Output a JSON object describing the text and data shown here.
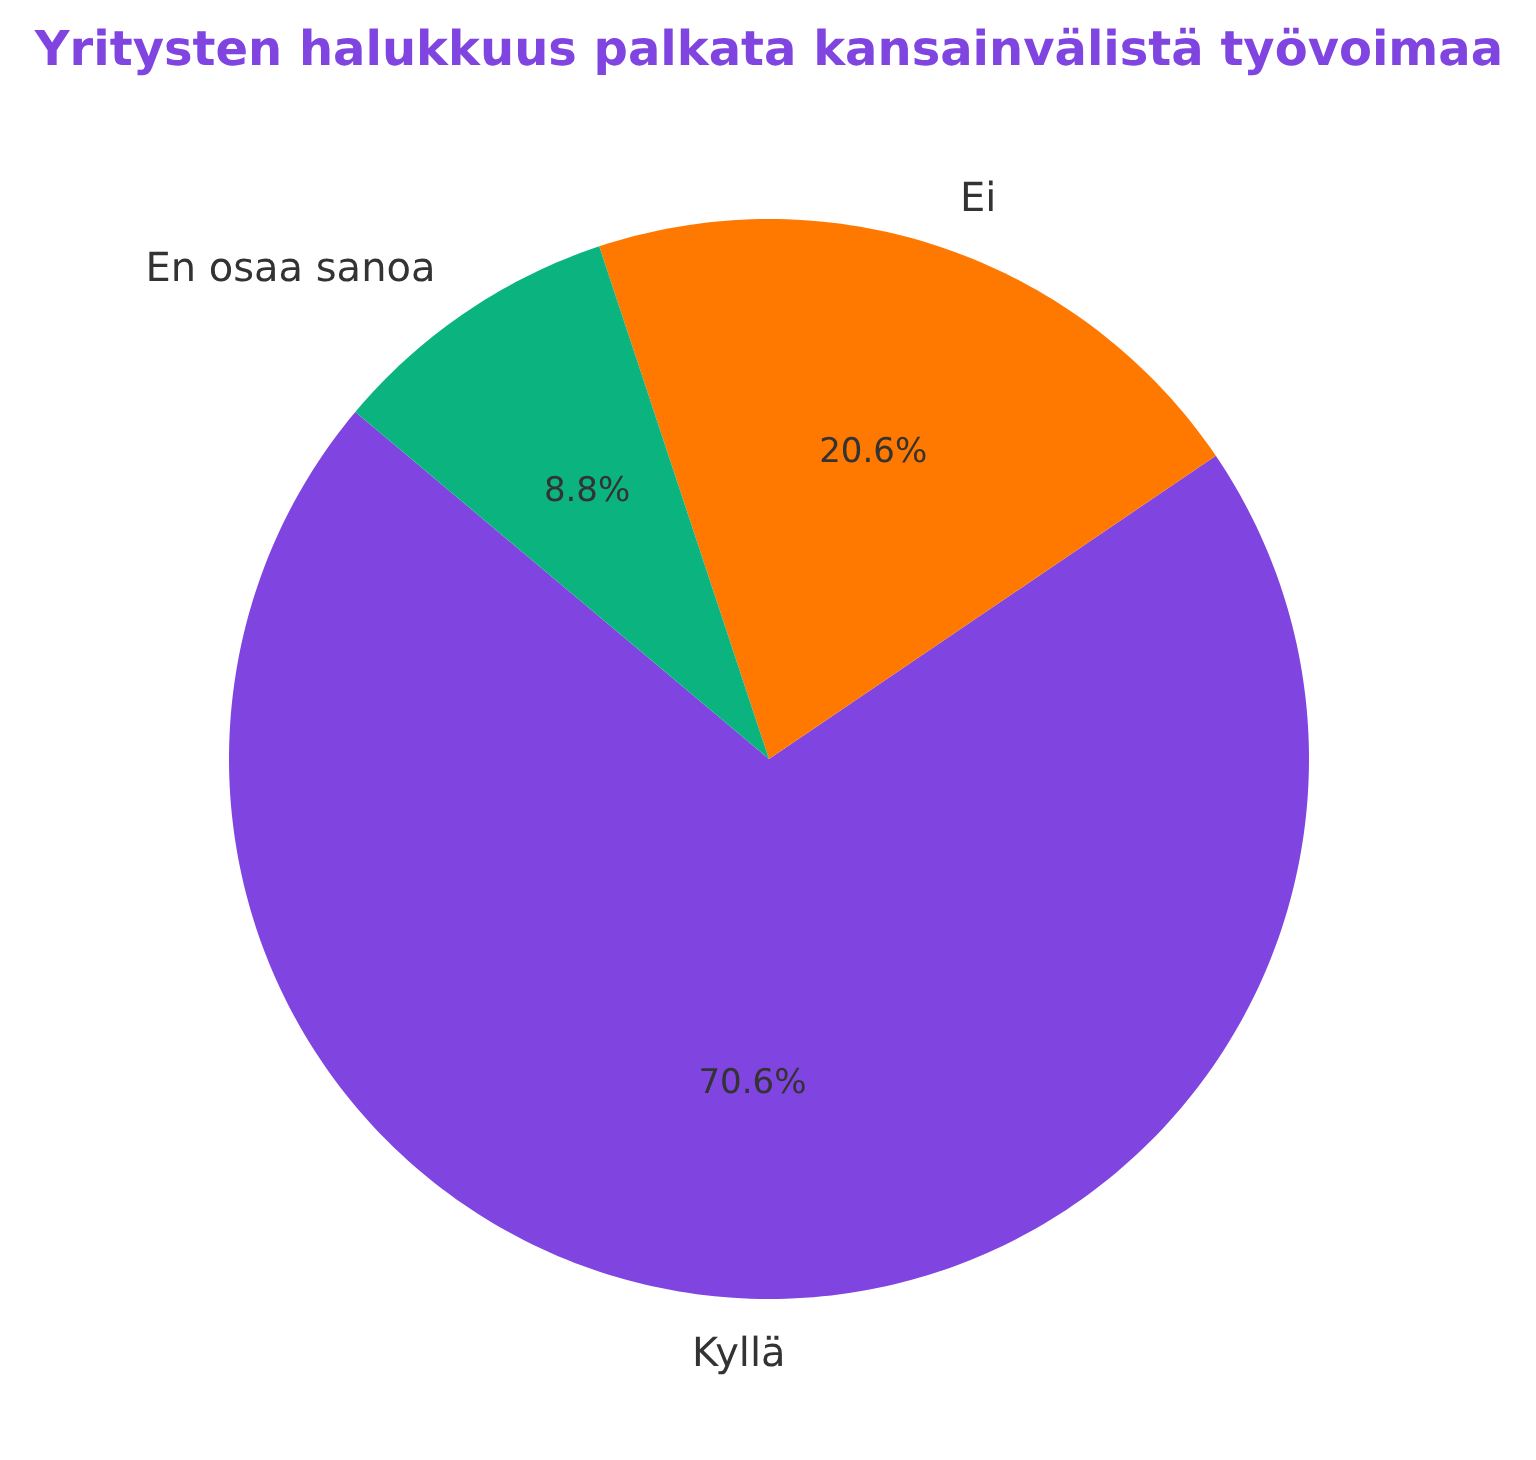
{
  "chart_data": {
    "type": "pie",
    "title": "Yritysten halukkuus palkata kansainvälistä työvoimaa",
    "categories": [
      "Kyllä",
      "Ei",
      "En osaa sanoa"
    ],
    "values": [
      70.6,
      20.6,
      8.8
    ],
    "colors": [
      "#8045e0",
      "#ff7800",
      "#0bb47e"
    ],
    "value_labels": [
      "70.6%",
      "20.6%",
      "8.8%"
    ]
  }
}
